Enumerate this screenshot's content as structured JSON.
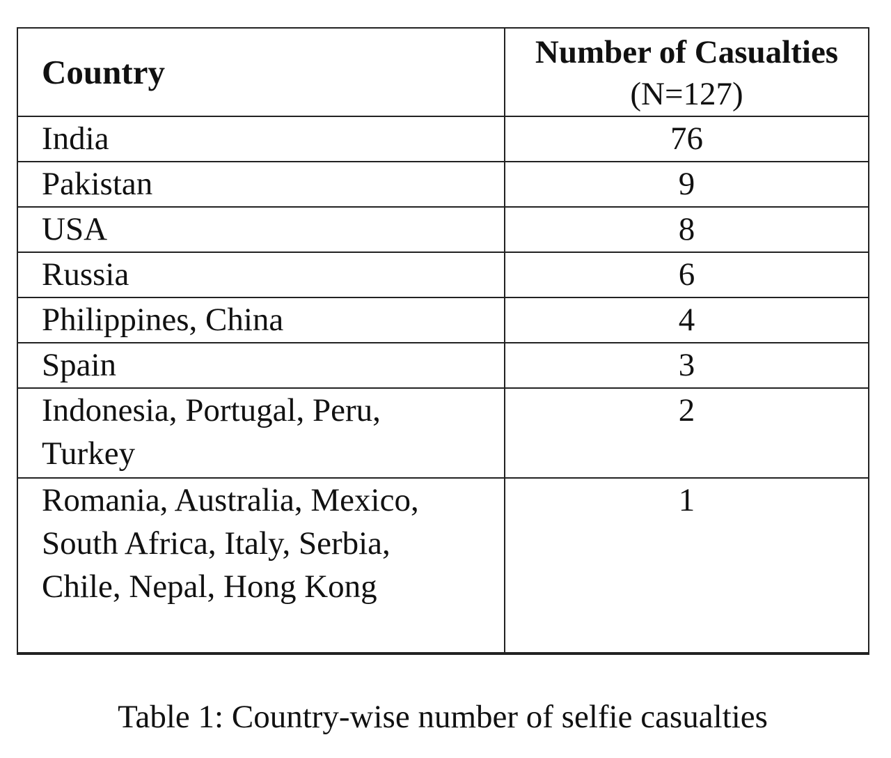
{
  "table": {
    "headers": {
      "country": "Country",
      "casualties": "Number of Casualties",
      "casualties_sub": "(N=127)"
    },
    "rows": [
      {
        "country": "India",
        "count": "76"
      },
      {
        "country": "Pakistan",
        "count": "9"
      },
      {
        "country": "USA",
        "count": "8"
      },
      {
        "country": "Russia",
        "count": "6"
      },
      {
        "country": "Philippines, China",
        "count": "4"
      },
      {
        "country": "Spain",
        "count": "3"
      },
      {
        "country": "Indonesia, Portugal, Peru, Turkey",
        "count": "2"
      },
      {
        "country": "Romania, Australia, Mexico, South Africa, Italy, Serbia, Chile, Nepal, Hong Kong",
        "count": "1"
      }
    ]
  },
  "caption": "Table 1: Country-wise number of selfie casualties"
}
